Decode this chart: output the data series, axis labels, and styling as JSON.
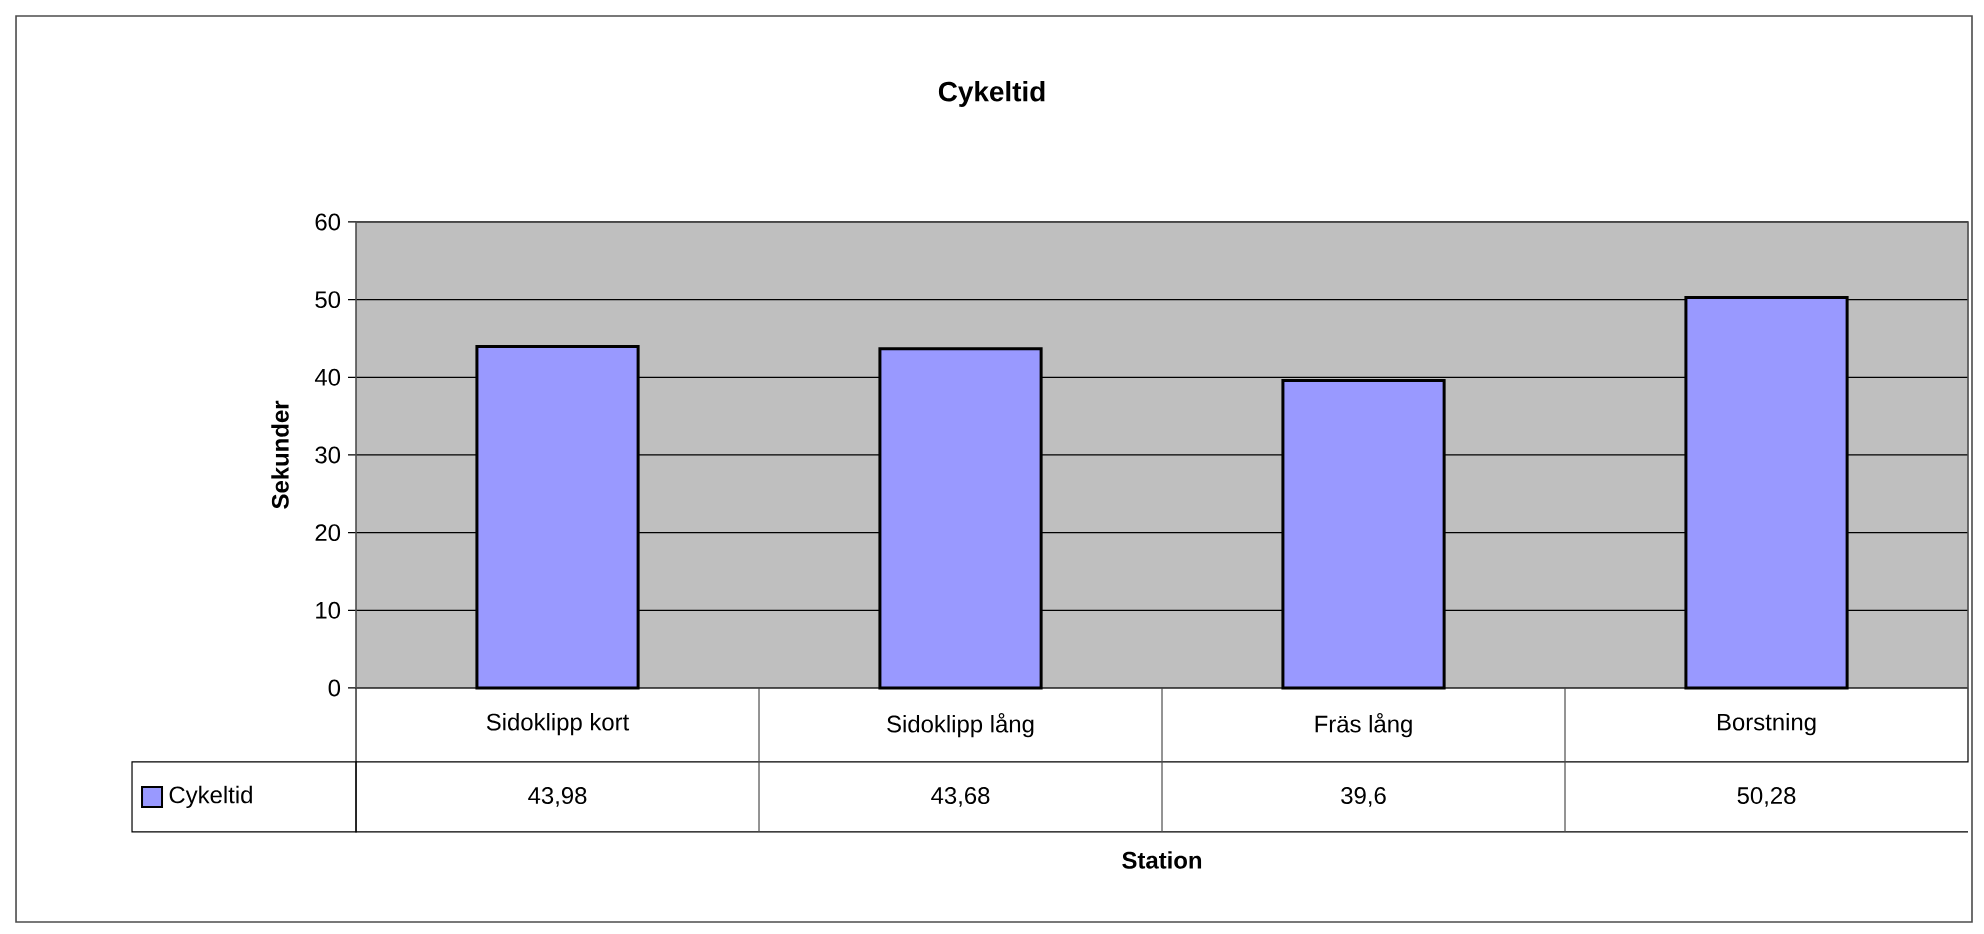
{
  "chart_data": {
    "type": "bar",
    "title": "Cykeltid",
    "xlabel": "Station",
    "ylabel": "Sekunder",
    "categories": [
      "Sidoklipp kort",
      "Sidoklipp lång",
      "Fräs lång",
      "Borstning"
    ],
    "series": [
      {
        "name": "Cykeltid",
        "color": "#9999ff",
        "values": [
          43.98,
          43.68,
          39.6,
          50.28
        ],
        "value_labels": [
          "43,98",
          "43,68",
          "39,6",
          "50,28"
        ]
      }
    ],
    "ylim": [
      0,
      60
    ],
    "yticks": [
      0,
      10,
      20,
      30,
      40,
      50,
      60
    ],
    "grid": "y",
    "legend": "bottom left"
  }
}
